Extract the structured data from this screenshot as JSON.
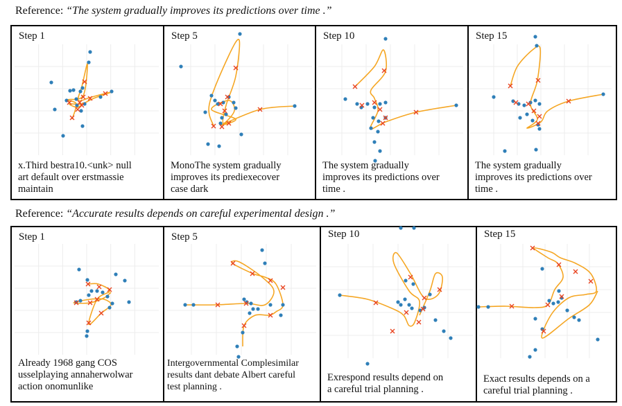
{
  "colors": {
    "curve": "#f5a623",
    "marker": "#e8431f",
    "dot": "#2f7fb8"
  },
  "examples": [
    {
      "reference_label": "Reference:",
      "reference_text": "“The system gradually improves its predictions over time .”",
      "panels": [
        {
          "step": "Step 1",
          "caption": "x.Third bestra10.<unk> null\nart default over erstmassie\nmaintain"
        },
        {
          "step": "Step 5",
          "caption": "MonoThe system gradually\nimproves its prediexecover\ncase dark"
        },
        {
          "step": "Step 10",
          "caption": "The system gradually\nimproves its predictions over\ntime ."
        },
        {
          "step": "Step 15",
          "caption": "The system gradually\nimproves its predictions over\ntime ."
        }
      ]
    },
    {
      "reference_label": "Reference:",
      "reference_text": "“Accurate results depends on careful experimental design .”",
      "panels": [
        {
          "step": "Step 1",
          "caption": "Already 1968 gang COS\nusselplaying annaherwolwar\naction onomunlike"
        },
        {
          "step": "Step 5",
          "caption": "Intergovernmental Complesimilar\nresults dant debate Albert careful\ntest planning ."
        },
        {
          "step": "Step 10",
          "caption": "Exrespond results depend on\na careful trial planning ."
        },
        {
          "step": "Step 15",
          "caption": "Exact results depends on a\ncareful trial planning ."
        }
      ]
    }
  ]
}
